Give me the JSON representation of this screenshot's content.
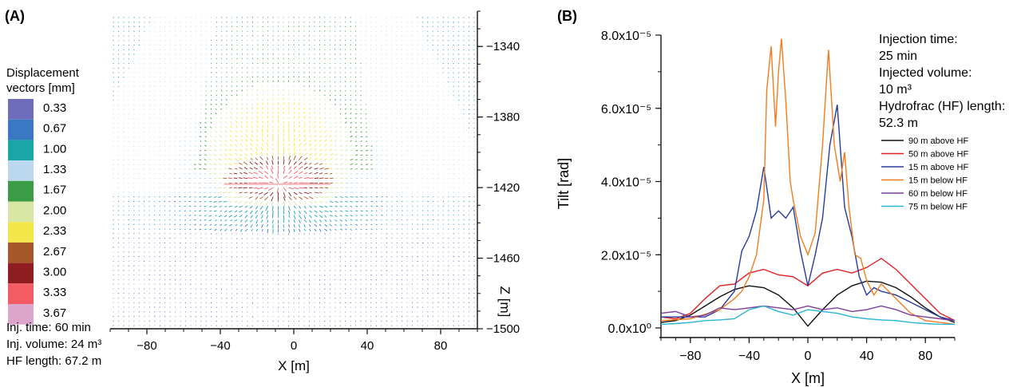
{
  "panel_a": {
    "label": "(A)",
    "legend": {
      "title_line1": "Displacement",
      "title_line2": "vectors [mm]",
      "entries": [
        {
          "value": "0.33",
          "color": "#6f6cbc"
        },
        {
          "value": "0.67",
          "color": "#3b78c4"
        },
        {
          "value": "1.00",
          "color": "#1aa5a9"
        },
        {
          "value": "1.33",
          "color": "#bcd8ee"
        },
        {
          "value": "1.67",
          "color": "#3c9c45"
        },
        {
          "value": "2.00",
          "color": "#d7e6a3"
        },
        {
          "value": "2.33",
          "color": "#f2e64a"
        },
        {
          "value": "2.67",
          "color": "#a6582a"
        },
        {
          "value": "3.00",
          "color": "#8e1c20"
        },
        {
          "value": "3.33",
          "color": "#f25c62"
        },
        {
          "value": "3.67",
          "color": "#dba5cc"
        }
      ]
    },
    "info": {
      "line1": "Inj. time: 60 min",
      "line2": "Inj. volume: 24 m³",
      "line3": "HF length: 67.2 m"
    }
  },
  "panel_b": {
    "label": "(B)",
    "info": {
      "line1": "Injection time:",
      "line2": "25 min",
      "line3": "Injected volume:",
      "line4": "10 m³",
      "line5": "Hydrofrac (HF) length:",
      "line6": "52.3 m"
    }
  },
  "chart_data": [
    {
      "type": "vector-field",
      "panel": "(A)",
      "xlabel": "X [m]",
      "ylabel": "Z [m]",
      "xlim": [
        -100,
        100
      ],
      "ylim": [
        -1500,
        -1320
      ],
      "xticks": [
        -80,
        -40,
        0,
        40,
        80
      ],
      "xtick_labels": [
        "−80",
        "−40",
        "0",
        "40",
        "80"
      ],
      "yticks": [
        -1340,
        -1380,
        -1420,
        -1460,
        -1500
      ],
      "ytick_labels": [
        "−1340",
        "−1380",
        "−1420",
        "−1460",
        "−1500"
      ],
      "colorbar_label": "Displacement vectors [mm]",
      "fracture": {
        "x_start": -38,
        "x_end": 20,
        "z": -1418
      }
    },
    {
      "type": "line",
      "panel": "(B)",
      "xlabel": "X [m]",
      "ylabel": "Tilt [rad]",
      "xlim": [
        -100,
        100
      ],
      "ylim": [
        0,
        8e-05
      ],
      "xticks": [
        -80,
        -40,
        0,
        40,
        80
      ],
      "xtick_labels": [
        "−80",
        "−40",
        "0",
        "40",
        "80"
      ],
      "yticks": [
        0,
        2e-05,
        4e-05,
        6e-05,
        8e-05
      ],
      "ytick_labels": [
        "0.0x10⁰",
        "2.0x10⁻⁵",
        "4.0x10⁻⁵",
        "6.0x10⁻⁵",
        "8.0x10⁻⁵"
      ],
      "legend_position": "right",
      "series": [
        {
          "name": "90 m above HF",
          "color": "#111111",
          "x": [
            -100,
            -90,
            -80,
            -70,
            -60,
            -50,
            -40,
            -30,
            -20,
            -10,
            0,
            10,
            20,
            30,
            40,
            50,
            60,
            70,
            80,
            90,
            100
          ],
          "y": [
            1.5e-06,
            2e-06,
            3.5e-06,
            6e-06,
            8.5e-06,
            1.05e-05,
            1.15e-05,
            1.1e-05,
            9e-06,
            5.5e-06,
            5e-07,
            5e-06,
            9e-06,
            1.15e-05,
            1.28e-05,
            1.25e-05,
            1.1e-05,
            8.5e-06,
            5.5e-06,
            3e-06,
            1.5e-06
          ]
        },
        {
          "name": "50 m above HF",
          "color": "#e02020",
          "x": [
            -100,
            -90,
            -80,
            -70,
            -60,
            -50,
            -40,
            -30,
            -20,
            -10,
            0,
            10,
            20,
            30,
            40,
            50,
            60,
            70,
            80,
            90,
            100
          ],
          "y": [
            3e-06,
            2.5e-06,
            4e-06,
            8e-06,
            1.15e-05,
            1.2e-05,
            1.5e-05,
            1.6e-05,
            1.45e-05,
            1.4e-05,
            1.15e-05,
            1.5e-05,
            1.6e-05,
            1.5e-05,
            1.65e-05,
            1.9e-05,
            1.6e-05,
            1.2e-05,
            8e-06,
            4e-06,
            2e-06
          ]
        },
        {
          "name": "15 m above HF",
          "color": "#2a3b9a",
          "x": [
            -100,
            -90,
            -80,
            -70,
            -60,
            -50,
            -45,
            -40,
            -35,
            -30,
            -25,
            -20,
            -15,
            -10,
            -5,
            0,
            5,
            10,
            15,
            20,
            25,
            30,
            35,
            40,
            45,
            50,
            60,
            70,
            80,
            90,
            100
          ],
          "y": [
            3e-06,
            3e-06,
            3e-06,
            3e-06,
            5e-06,
            1e-05,
            2.1e-05,
            2.5e-05,
            3.2e-05,
            4.4e-05,
            3e-05,
            3.2e-05,
            3e-05,
            3.3e-05,
            2.1e-05,
            1.15e-05,
            2e-05,
            3e-05,
            5e-05,
            6.1e-05,
            3.3e-05,
            2.5e-05,
            1.4e-05,
            9e-06,
            1.1e-05,
            1e-05,
            9e-06,
            7e-06,
            5e-06,
            3e-06,
            2e-06
          ]
        },
        {
          "name": "15 m below HF",
          "color": "#f07d1e",
          "x": [
            -100,
            -80,
            -60,
            -50,
            -45,
            -40,
            -35,
            -30,
            -28,
            -25,
            -22,
            -20,
            -18,
            -15,
            -12,
            -10,
            -5,
            0,
            5,
            10,
            14,
            18,
            22,
            25,
            28,
            32,
            36,
            40,
            45,
            50,
            60,
            70,
            80,
            90,
            100
          ],
          "y": [
            2e-06,
            2.5e-06,
            5e-06,
            8e-06,
            1e-05,
            1.4e-05,
            2e-05,
            3.5e-05,
            6.5e-05,
            7.7e-05,
            5.5e-05,
            7e-05,
            7.9e-05,
            6.2e-05,
            4e-05,
            3.5e-05,
            2.5e-05,
            2e-05,
            2.6e-05,
            5e-05,
            7.6e-05,
            5e-05,
            4e-05,
            4.8e-05,
            3.3e-05,
            2e-05,
            1.9e-05,
            1.3e-05,
            9e-06,
            1.2e-05,
            8e-06,
            4e-06,
            2e-06,
            1.5e-06,
            1e-06
          ]
        },
        {
          "name": "60 m below HF",
          "color": "#7e3e98",
          "x": [
            -100,
            -90,
            -80,
            -70,
            -60,
            -50,
            -40,
            -30,
            -20,
            -10,
            0,
            10,
            20,
            30,
            40,
            50,
            60,
            70,
            80,
            90,
            100
          ],
          "y": [
            4e-06,
            4.5e-06,
            3e-06,
            3.5e-06,
            5.5e-06,
            5e-06,
            5.5e-06,
            6e-06,
            5.5e-06,
            5e-06,
            6e-06,
            5e-06,
            5.5e-06,
            4.5e-06,
            5e-06,
            6e-06,
            5e-06,
            3.5e-06,
            3e-06,
            2.5e-06,
            2e-06
          ]
        },
        {
          "name": "75 m below HF",
          "color": "#2bb4d4",
          "x": [
            -100,
            -90,
            -80,
            -70,
            -60,
            -50,
            -40,
            -30,
            -20,
            -10,
            0,
            10,
            20,
            30,
            40,
            50,
            60,
            70,
            80,
            90,
            100
          ],
          "y": [
            1e-06,
            1.2e-06,
            1.5e-06,
            2e-06,
            2.2e-06,
            2.5e-06,
            5e-06,
            6e-06,
            4.5e-06,
            3.5e-06,
            5e-06,
            4.5e-06,
            4e-06,
            3e-06,
            2.5e-06,
            2.2e-06,
            2e-06,
            1.5e-06,
            1.2e-06,
            1e-06,
            1e-06
          ]
        }
      ]
    }
  ]
}
